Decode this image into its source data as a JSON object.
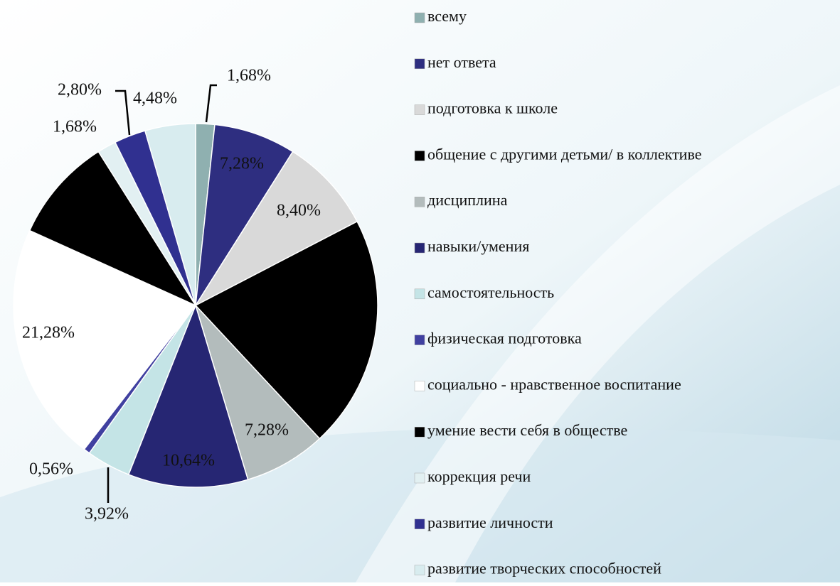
{
  "chart_data": {
    "type": "pie",
    "categories": [
      "всему",
      "нет ответа",
      "подготовка к школе",
      "общение с другими детьми/ в коллективе",
      "дисциплина",
      "навыки/умения",
      "самостоятельность",
      "физическая подготовка",
      "социально - нравственное воспитание",
      "умение вести себя в обществе",
      "коррекция речи",
      "развитие личности",
      "развитие творческих способностей"
    ],
    "values": [
      1.68,
      7.28,
      8.4,
      20.72,
      7.28,
      10.64,
      3.92,
      0.56,
      21.28,
      9.28,
      1.68,
      2.8,
      4.48
    ],
    "value_labels": [
      "1,68%",
      "7,28%",
      "8,40%",
      null,
      "7,28%",
      "10,64%",
      "3,92%",
      "0,56%",
      "21,28%",
      null,
      "1,68%",
      "2,80%",
      "4,48%"
    ],
    "colors": [
      "#8fb0b0",
      "#2e2e80",
      "#d9d9d9",
      "#000000",
      "#b3bcbc",
      "#262673",
      "#c4e4e6",
      "#4040a0",
      "#ffffff",
      "#000000",
      "#e2f0f2",
      "#303090",
      "#d8ecef"
    ],
    "legend": "right"
  }
}
